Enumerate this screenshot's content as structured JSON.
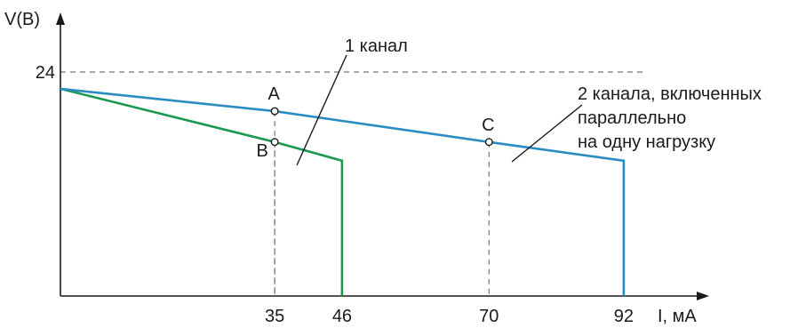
{
  "chart_data": {
    "type": "line",
    "ylabel": "V(B)",
    "xlabel": "I, мА",
    "y_ticks": [
      {
        "value": 24,
        "label": "24"
      }
    ],
    "x_ticks": [
      {
        "value": 35,
        "label": "35"
      },
      {
        "value": 46,
        "label": "46"
      },
      {
        "value": 70,
        "label": "70"
      },
      {
        "value": 92,
        "label": "92"
      }
    ],
    "xlim": [
      0,
      100
    ],
    "ylim": [
      0,
      24
    ],
    "reference_line": {
      "y": 24,
      "style": "dashed"
    },
    "series": [
      {
        "name": "1 канал",
        "color": "#1a9850",
        "points": [
          [
            0,
            22.2
          ],
          [
            35,
            16.5
          ],
          [
            46,
            14.5
          ],
          [
            46,
            0
          ]
        ]
      },
      {
        "name": "2 канала, включенных параллельно на одну нагрузку",
        "name_lines": [
          "2 канала, включенных",
          "параллельно",
          "на одну нагрузку"
        ],
        "color": "#2b8cc4",
        "points": [
          [
            0,
            22.2
          ],
          [
            35,
            19.8
          ],
          [
            70,
            16.5
          ],
          [
            92,
            14.5
          ],
          [
            92,
            0
          ]
        ]
      }
    ],
    "markers": [
      {
        "label": "A",
        "x": 35,
        "y": 19.8
      },
      {
        "label": "B",
        "x": 35,
        "y": 16.5
      },
      {
        "label": "C",
        "x": 70,
        "y": 16.5
      }
    ]
  }
}
